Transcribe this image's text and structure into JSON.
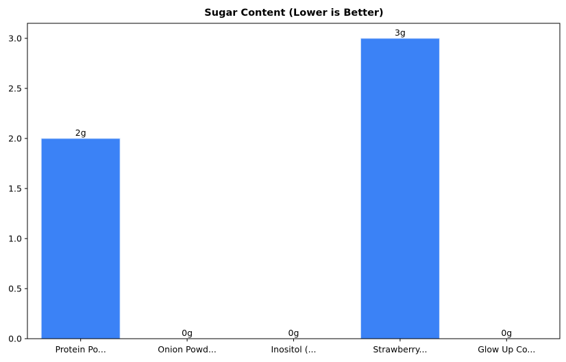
{
  "chart_data": {
    "type": "bar",
    "title": "Sugar Content (Lower is Better)",
    "xlabel": "",
    "ylabel": "",
    "categories": [
      "Protein Po...",
      "Onion Powd...",
      "Inositol (...",
      "Strawberry...",
      "Glow Up Co..."
    ],
    "values": [
      2,
      0,
      0,
      3,
      0
    ],
    "data_labels": [
      "2g",
      "0g",
      "0g",
      "3g",
      "0g"
    ],
    "ylim": [
      0,
      3.15
    ],
    "yticks": [
      "0.0",
      "0.5",
      "1.0",
      "1.5",
      "2.0",
      "2.5",
      "3.0"
    ],
    "ytick_values": [
      0,
      0.5,
      1.0,
      1.5,
      2.0,
      2.5,
      3.0
    ],
    "grid": false,
    "legend": "none",
    "bar_color": "#3b82f6",
    "bar_edge_color": "#d9e6fb"
  }
}
